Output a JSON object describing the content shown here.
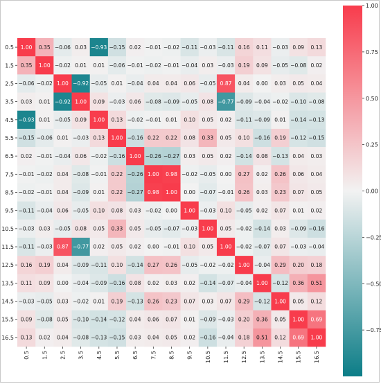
{
  "chart_data": {
    "type": "heatmap",
    "title": "",
    "xlabel": "",
    "ylabel": "",
    "labels": [
      "0.5",
      "1.5",
      "2.5",
      "3.5",
      "4.5",
      "5.5",
      "6.5",
      "7.5",
      "8.5",
      "9.5",
      "10.5",
      "11.5",
      "12.5",
      "13.5",
      "14.5",
      "15.5",
      "16.5"
    ],
    "values": [
      [
        1.0,
        0.35,
        -0.06,
        0.03,
        -0.93,
        -0.15,
        0.02,
        -0.01,
        -0.02,
        -0.11,
        -0.03,
        -0.11,
        0.16,
        0.11,
        -0.03,
        0.09,
        0.13
      ],
      [
        0.35,
        1.0,
        -0.02,
        0.01,
        0.01,
        -0.06,
        -0.01,
        -0.02,
        -0.01,
        -0.04,
        0.03,
        -0.03,
        0.19,
        0.09,
        -0.05,
        -0.08,
        0.02
      ],
      [
        -0.06,
        -0.02,
        1.0,
        -0.92,
        -0.05,
        0.01,
        -0.04,
        0.04,
        0.04,
        0.06,
        -0.05,
        0.87,
        0.04,
        0.0,
        0.03,
        0.05,
        0.04
      ],
      [
        0.03,
        0.01,
        -0.92,
        1.0,
        0.09,
        -0.03,
        0.06,
        -0.08,
        -0.09,
        -0.05,
        0.08,
        -0.77,
        -0.09,
        -0.04,
        -0.02,
        -0.1,
        -0.08
      ],
      [
        -0.93,
        0.01,
        -0.05,
        0.09,
        1.0,
        0.13,
        -0.02,
        -0.01,
        0.01,
        0.1,
        0.05,
        0.02,
        -0.11,
        -0.09,
        0.01,
        -0.14,
        -0.13
      ],
      [
        -0.15,
        -0.06,
        0.01,
        -0.03,
        0.13,
        1.0,
        -0.16,
        0.22,
        0.22,
        0.08,
        0.33,
        0.05,
        0.1,
        -0.16,
        0.19,
        -0.12,
        -0.15
      ],
      [
        0.02,
        -0.01,
        -0.04,
        0.06,
        -0.02,
        -0.16,
        1.0,
        -0.26,
        -0.27,
        0.03,
        0.05,
        0.02,
        -0.14,
        0.08,
        -0.13,
        0.04,
        0.03
      ],
      [
        -0.01,
        -0.02,
        0.04,
        -0.08,
        -0.01,
        0.22,
        -0.26,
        1.0,
        0.98,
        -0.02,
        -0.05,
        0.0,
        0.27,
        0.02,
        0.26,
        0.06,
        0.04
      ],
      [
        -0.02,
        -0.01,
        0.04,
        -0.09,
        0.01,
        0.22,
        -0.27,
        0.98,
        1.0,
        -0.0,
        -0.07,
        -0.01,
        0.26,
        0.03,
        0.23,
        0.07,
        0.05
      ],
      [
        -0.11,
        -0.04,
        0.06,
        -0.05,
        0.1,
        0.08,
        0.03,
        -0.02,
        -0.0,
        1.0,
        -0.03,
        0.1,
        -0.05,
        0.02,
        0.07,
        0.01,
        0.02
      ],
      [
        -0.03,
        0.03,
        -0.05,
        0.08,
        0.05,
        0.33,
        0.05,
        -0.05,
        -0.07,
        -0.03,
        1.0,
        0.05,
        -0.02,
        -0.14,
        0.03,
        -0.09,
        -0.16
      ],
      [
        -0.11,
        -0.03,
        0.87,
        -0.77,
        0.02,
        0.05,
        0.02,
        0.0,
        -0.01,
        0.1,
        0.05,
        1.0,
        -0.02,
        -0.07,
        0.07,
        -0.03,
        -0.04
      ],
      [
        0.16,
        0.19,
        0.04,
        -0.09,
        -0.11,
        0.1,
        -0.14,
        0.27,
        0.26,
        -0.05,
        -0.02,
        -0.02,
        1.0,
        -0.04,
        0.29,
        0.2,
        0.18
      ],
      [
        0.11,
        0.09,
        0.0,
        -0.04,
        -0.09,
        -0.16,
        0.08,
        0.02,
        0.03,
        0.02,
        -0.14,
        -0.07,
        -0.04,
        1.0,
        -0.12,
        0.36,
        0.51
      ],
      [
        -0.03,
        -0.05,
        0.03,
        -0.02,
        0.01,
        0.19,
        -0.13,
        0.26,
        0.23,
        0.07,
        0.03,
        0.07,
        0.29,
        -0.12,
        1.0,
        0.05,
        0.12
      ],
      [
        0.09,
        -0.08,
        0.05,
        -0.1,
        -0.14,
        -0.12,
        0.04,
        0.06,
        0.07,
        0.01,
        -0.09,
        -0.03,
        0.2,
        0.36,
        0.05,
        1.0,
        0.69
      ],
      [
        0.13,
        0.02,
        0.04,
        -0.08,
        -0.13,
        -0.15,
        0.03,
        0.04,
        0.05,
        0.02,
        -0.16,
        -0.04,
        0.18,
        0.51,
        0.12,
        0.69,
        1.0
      ]
    ],
    "value_format": "2 decimals",
    "colorbar": {
      "range": [
        -1.0,
        1.0
      ],
      "ticks": [
        "1.00",
        "0.75",
        "0.50",
        "0.25",
        "0.00",
        "−0.25",
        "−0.50",
        "−0.75"
      ],
      "tick_values": [
        1.0,
        0.75,
        0.5,
        0.25,
        0.0,
        -0.25,
        -0.5,
        -0.75
      ],
      "low_color": "#0c7d87",
      "mid_color": "#f2f2f2",
      "high_color": "#f83c4c"
    },
    "grid": false
  }
}
